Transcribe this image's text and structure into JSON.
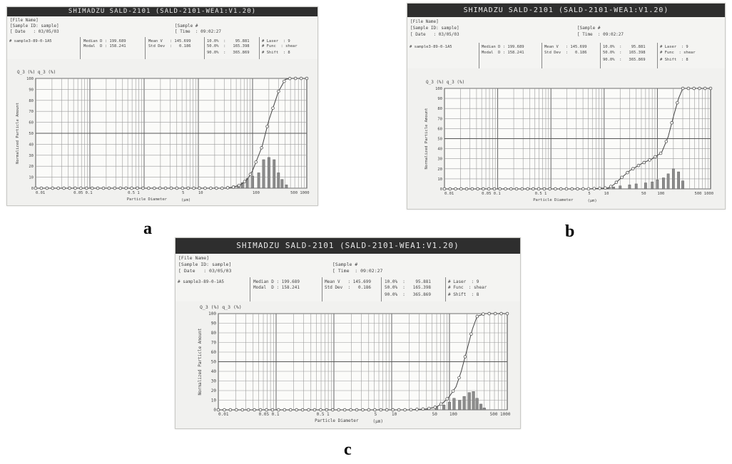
{
  "panel_labels": [
    "a",
    "b",
    "c"
  ],
  "instrument": {
    "title": "SHIMADZU  SALD-2101   (SALD-2101-WEA1:V1.20)",
    "file_name": "[File Name]",
    "sample_id": "[Sample ID: sample]",
    "date": "[ Date   : 03/05/03",
    "sample_no": "[Sample #",
    "time": "[ Time  : 09:02:27"
  },
  "stats": {
    "sample_file": "# sample3-89-0-1A5",
    "col1_line1": "Median D : 199.689",
    "col1_line2": "Modal  D : 158.241",
    "col2_line1": "Mean V   : 145.699",
    "col2_line2": "Std Dev  :   0.186",
    "col3_line1": "10.0%  :    95.881",
    "col3_line2": "50.0%  :   165.398",
    "col3_line3": "90.0%  :   365.869",
    "col4_line1": "# Laser  : 9",
    "col4_line2": "# Func  : shear",
    "col4_line3": "# Shift  : 8"
  },
  "chart_data": [
    {
      "panel": "a",
      "type": "bar",
      "y_label": "Normalized Particle Amount",
      "y_header": "Q_3 (%)   q_3 (%)",
      "x_label": "Particle Diameter",
      "x_unit": "(μm)",
      "x_scale": "log",
      "xlim": [
        0.01,
        1000
      ],
      "ylim": [
        0,
        100
      ],
      "y_ticks": [
        0,
        10,
        20,
        30,
        40,
        50,
        60,
        70,
        80,
        90,
        100
      ],
      "x_tick_labels": [
        {
          "x": 0.01,
          "label": "0.01"
        },
        {
          "x": 0.05,
          "label": "0.05 0.1"
        },
        {
          "x": 0.5,
          "label": "0.5 1"
        },
        {
          "x": 5,
          "label": "5"
        },
        {
          "x": 10,
          "label": "10"
        },
        {
          "x": 100,
          "label": "100"
        },
        {
          "x": 500,
          "label": "500 1000"
        }
      ],
      "grid": true,
      "series": [
        {
          "kind": "line",
          "x": [
            0.01,
            1,
            30,
            45,
            60,
            80,
            100,
            150,
            200,
            300,
            400,
            500,
            600,
            800,
            1000
          ],
          "y": [
            0,
            0,
            0,
            1,
            3,
            8,
            16,
            38,
            62,
            88,
            99,
            100,
            100,
            100,
            100
          ]
        },
        {
          "kind": "bar",
          "x": [
            35,
            45,
            55,
            65,
            80,
            100,
            130,
            160,
            200,
            250,
            300,
            350,
            420
          ],
          "y": [
            1,
            2,
            3,
            5,
            9,
            11,
            14,
            26,
            28,
            26,
            14,
            8,
            3
          ]
        }
      ]
    },
    {
      "panel": "b",
      "type": "bar",
      "y_label": "Normalized Particle Amount",
      "y_header": "Q_3 (%)   q_3 (%)",
      "x_label": "Particle Diameter",
      "x_unit": "(μm)",
      "x_scale": "log",
      "xlim": [
        0.01,
        1000
      ],
      "ylim": [
        0,
        100
      ],
      "y_ticks": [
        0,
        10,
        20,
        30,
        40,
        50,
        60,
        70,
        80,
        90,
        100
      ],
      "x_tick_labels": [
        {
          "x": 0.01,
          "label": "0.01"
        },
        {
          "x": 0.05,
          "label": "0.05 0.1"
        },
        {
          "x": 0.5,
          "label": "0.5 1"
        },
        {
          "x": 5,
          "label": "5"
        },
        {
          "x": 10,
          "label": "10"
        },
        {
          "x": 50,
          "label": "50"
        },
        {
          "x": 100,
          "label": "100"
        },
        {
          "x": 500,
          "label": "500 1000"
        }
      ],
      "grid": true,
      "series": [
        {
          "kind": "line",
          "x": [
            0.01,
            5,
            12,
            15,
            20,
            30,
            50,
            80,
            120,
            160,
            200,
            250,
            300,
            400,
            600,
            1000
          ],
          "y": [
            0,
            0,
            1,
            4,
            10,
            18,
            25,
            30,
            36,
            52,
            72,
            90,
            100,
            100,
            100,
            100
          ]
        },
        {
          "kind": "bar",
          "x": [
            12,
            15,
            20,
            30,
            40,
            60,
            80,
            100,
            130,
            160,
            200,
            250,
            300
          ],
          "y": [
            1,
            2,
            3,
            4,
            5,
            6,
            7,
            9,
            11,
            15,
            20,
            17,
            8
          ]
        }
      ]
    },
    {
      "panel": "c",
      "type": "bar",
      "y_label": "Normalized Particle Amount",
      "y_header": "Q_3 (%)   q_3 (%)",
      "x_label": "Particle Diameter",
      "x_unit": "(μm)",
      "x_scale": "log",
      "xlim": [
        0.01,
        1000
      ],
      "ylim": [
        0,
        100
      ],
      "y_ticks": [
        0,
        10,
        20,
        30,
        40,
        50,
        60,
        70,
        80,
        90,
        100
      ],
      "x_tick_labels": [
        {
          "x": 0.01,
          "label": "0.01"
        },
        {
          "x": 0.05,
          "label": "0.05 0.1"
        },
        {
          "x": 0.5,
          "label": "0.5 1"
        },
        {
          "x": 5,
          "label": "5"
        },
        {
          "x": 10,
          "label": "10"
        },
        {
          "x": 50,
          "label": "50"
        },
        {
          "x": 100,
          "label": "100"
        },
        {
          "x": 500,
          "label": "500 1000"
        }
      ],
      "grid": true,
      "series": [
        {
          "kind": "line",
          "x": [
            0.01,
            20,
            40,
            60,
            80,
            100,
            130,
            160,
            200,
            250,
            300,
            400,
            500,
            700,
            1000
          ],
          "y": [
            0,
            0,
            1,
            3,
            8,
            14,
            24,
            40,
            62,
            84,
            97,
            100,
            100,
            100,
            100
          ]
        },
        {
          "kind": "bar",
          "x": [
            40,
            60,
            80,
            100,
            120,
            150,
            180,
            220,
            260,
            300,
            350,
            400
          ],
          "y": [
            1,
            3,
            5,
            8,
            12,
            10,
            14,
            18,
            19,
            12,
            6,
            2
          ]
        }
      ]
    }
  ]
}
